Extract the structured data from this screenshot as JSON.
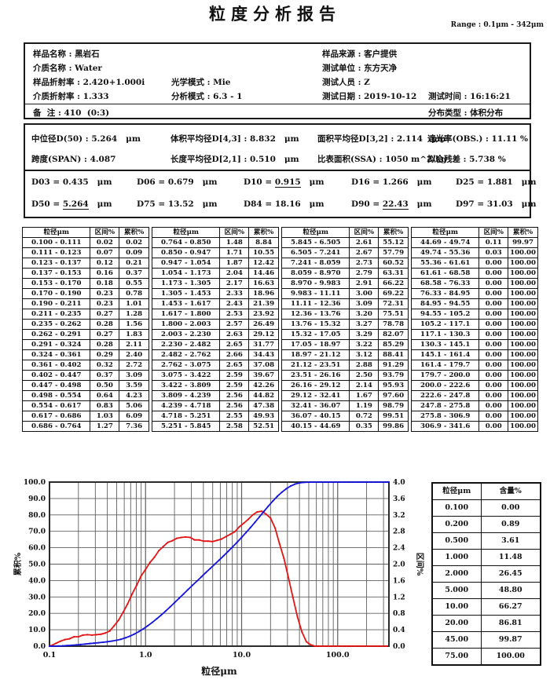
{
  "header": {
    "title": "粒度分析报告",
    "range": "Range : 0.1μm - 342μm"
  },
  "sample_info": {
    "fields": [
      {
        "label": "样品名称",
        "value": "黑岩石",
        "row": 0,
        "col": 0
      },
      {
        "label": "样品来源",
        "value": "客户提供",
        "row": 0,
        "col": 2
      },
      {
        "label": "介质名称",
        "value": "Water",
        "row": 1,
        "col": 0
      },
      {
        "label": "测试单位",
        "value": "东方天净",
        "row": 1,
        "col": 2
      },
      {
        "label": "样品折射率",
        "value": "2.420+1.000i",
        "row": 2,
        "col": 0
      },
      {
        "label": "光学模式",
        "value": "Mie",
        "row": 2,
        "col": 1
      },
      {
        "label": "测试人员",
        "value": "Z",
        "row": 2,
        "col": 2
      },
      {
        "label": "介质折射率",
        "value": "1.333",
        "row": 3,
        "col": 0
      },
      {
        "label": "分析模式",
        "value": "6.3 - 1",
        "row": 3,
        "col": 1
      },
      {
        "label": "测试日期",
        "value": "2019-10-12",
        "row": 3,
        "col": 2
      },
      {
        "label": "测试时间",
        "value": "16:16:21",
        "row": 3,
        "col": 3
      },
      {
        "label": "备  注",
        "value": "410  (0:3)",
        "row": 4,
        "col": 0
      },
      {
        "label": "分布类型",
        "value": "体积分布",
        "row": 4,
        "col": 3
      }
    ]
  },
  "statistics": {
    "fields": [
      {
        "label": "中位径D(50)",
        "value": "5.264",
        "unit": "μm",
        "row": 0,
        "col": 0
      },
      {
        "label": "体积平均径D[4,3]",
        "value": "8.832",
        "unit": "μm",
        "row": 0,
        "col": 1
      },
      {
        "label": "面积平均径D[3,2]",
        "value": "2.114",
        "unit": "μm",
        "row": 0,
        "col": 2
      },
      {
        "label": "遮光率(OBS.)",
        "value": "11.11 %",
        "unit": "",
        "row": 0,
        "col": 3
      },
      {
        "label": "跨度(SPAN)",
        "value": "4.087",
        "unit": "",
        "row": 1,
        "col": 0
      },
      {
        "label": "长度平均径D[2,1]",
        "value": "0.510",
        "unit": "μm",
        "row": 1,
        "col": 1
      },
      {
        "label": "比表面积(SSA)",
        "value": "1050 m^2/kg",
        "unit": "",
        "row": 1,
        "col": 2
      },
      {
        "label": "拟合残差",
        "value": "5.738 %",
        "unit": "",
        "row": 1,
        "col": 3
      }
    ],
    "d_values": [
      [
        {
          "name": "D03",
          "value": "0.435",
          "unit": "μm",
          "underline": false
        },
        {
          "name": "D06",
          "value": "0.679",
          "unit": "μm",
          "underline": false
        },
        {
          "name": "D10",
          "value": "0.915",
          "unit": "μm",
          "underline": true
        },
        {
          "name": "D16",
          "value": "1.266",
          "unit": "μm",
          "underline": false
        },
        {
          "name": "D25",
          "value": "1.881",
          "unit": "μm",
          "underline": false
        }
      ],
      [
        {
          "name": "D50",
          "value": "5.264",
          "unit": "μm",
          "underline": true
        },
        {
          "name": "D75",
          "value": "13.52",
          "unit": "μm",
          "underline": false
        },
        {
          "name": "D84",
          "value": "18.16",
          "unit": "μm",
          "underline": false
        },
        {
          "name": "D90",
          "value": "22.43",
          "unit": "μm",
          "underline": true
        },
        {
          "name": "D97",
          "value": "31.03",
          "unit": "μm",
          "underline": false
        }
      ]
    ]
  },
  "distribution_table": {
    "headers": [
      "粒径μm",
      "区间%",
      "累积%"
    ],
    "groups": 4,
    "rows_per_group": 19
  },
  "content_table": {
    "headers": [
      "粒径μm",
      "含量%"
    ],
    "rows": [
      [
        "0.100",
        "0.00"
      ],
      [
        "0.200",
        "0.89"
      ],
      [
        "0.500",
        "3.61"
      ],
      [
        "1.000",
        "11.48"
      ],
      [
        "2.000",
        "26.45"
      ],
      [
        "5.000",
        "48.80"
      ],
      [
        "10.00",
        "66.27"
      ],
      [
        "20.00",
        "86.81"
      ],
      [
        "45.00",
        "99.87"
      ],
      [
        "75.00",
        "100.00"
      ]
    ]
  },
  "chart_data": {
    "type": "line",
    "x_scale": "log",
    "xlabel": "粒径μm",
    "x_range": [
      0.1,
      341.6
    ],
    "x_ticks": [
      0.1,
      1.0,
      10.0,
      100.0
    ],
    "x_tick_labels": [
      "0.1",
      "1.0",
      "10.0",
      "100.0"
    ],
    "left_axis": {
      "label": "累积%",
      "range": [
        0,
        100
      ],
      "tick_step": 10
    },
    "right_axis": {
      "label": "区间%",
      "range": [
        0,
        4
      ],
      "tick_step": 0.4
    },
    "grid": true,
    "series": [
      {
        "name": "累积%",
        "axis": "left",
        "color": "#1414dd",
        "points": "cumulative_vs_upper_edge"
      },
      {
        "name": "区间%",
        "axis": "right",
        "color": "#e41414",
        "points": "interval_vs_bin_midpoint"
      }
    ],
    "bin_edges": [
      0.1,
      0.111,
      0.123,
      0.137,
      0.153,
      0.17,
      0.19,
      0.211,
      0.235,
      0.262,
      0.291,
      0.324,
      0.361,
      0.402,
      0.447,
      0.498,
      0.554,
      0.617,
      0.686,
      0.764,
      0.85,
      0.947,
      1.054,
      1.173,
      1.305,
      1.453,
      1.617,
      1.8,
      2.003,
      2.23,
      2.482,
      2.762,
      3.075,
      3.422,
      3.809,
      4.239,
      4.718,
      5.251,
      5.845,
      6.505,
      7.241,
      8.059,
      8.97,
      9.983,
      11.11,
      12.36,
      13.76,
      15.32,
      17.05,
      18.97,
      21.12,
      23.51,
      26.16,
      29.12,
      32.41,
      36.07,
      40.15,
      44.69,
      49.74,
      55.36,
      61.61,
      68.58,
      76.33,
      84.95,
      94.55,
      105.2,
      117.1,
      130.3,
      145.1,
      161.4,
      179.7,
      200.0,
      222.6,
      247.8,
      275.8,
      306.9,
      341.6
    ],
    "interval_pct": [
      0.02,
      0.07,
      0.12,
      0.16,
      0.18,
      0.23,
      0.23,
      0.27,
      0.28,
      0.27,
      0.28,
      0.29,
      0.32,
      0.37,
      0.5,
      0.64,
      0.83,
      1.03,
      1.27,
      1.48,
      1.71,
      1.87,
      2.04,
      2.17,
      2.33,
      2.43,
      2.53,
      2.57,
      2.63,
      2.65,
      2.66,
      2.65,
      2.59,
      2.59,
      2.56,
      2.56,
      2.55,
      2.58,
      2.61,
      2.67,
      2.73,
      2.79,
      2.91,
      3.0,
      3.09,
      3.2,
      3.27,
      3.29,
      3.22,
      3.12,
      2.88,
      2.5,
      2.14,
      1.67,
      1.19,
      0.72,
      0.35,
      0.11,
      0.03,
      0.0,
      0.0,
      0.0,
      0.0,
      0.0,
      0.0,
      0.0,
      0.0,
      0.0,
      0.0,
      0.0,
      0.0,
      0.0,
      0.0,
      0.0,
      0.0,
      0.0
    ],
    "cumulative_pct": [
      0.02,
      0.09,
      0.21,
      0.37,
      0.55,
      0.78,
      1.01,
      1.28,
      1.56,
      1.83,
      2.11,
      2.4,
      2.72,
      3.09,
      3.59,
      4.23,
      5.06,
      6.09,
      7.36,
      8.84,
      10.55,
      12.42,
      14.46,
      16.63,
      18.96,
      21.39,
      23.92,
      26.49,
      29.12,
      31.77,
      34.43,
      37.08,
      39.67,
      42.26,
      44.82,
      47.38,
      49.93,
      52.51,
      55.12,
      57.79,
      60.52,
      63.31,
      66.22,
      69.22,
      72.31,
      75.51,
      78.78,
      82.07,
      85.29,
      88.41,
      91.29,
      93.79,
      95.93,
      97.6,
      98.79,
      99.51,
      99.86,
      99.97,
      100.0,
      100.0,
      100.0,
      100.0,
      100.0,
      100.0,
      100.0,
      100.0,
      100.0,
      100.0,
      100.0,
      100.0,
      100.0,
      100.0,
      100.0,
      100.0,
      100.0,
      100.0
    ]
  }
}
